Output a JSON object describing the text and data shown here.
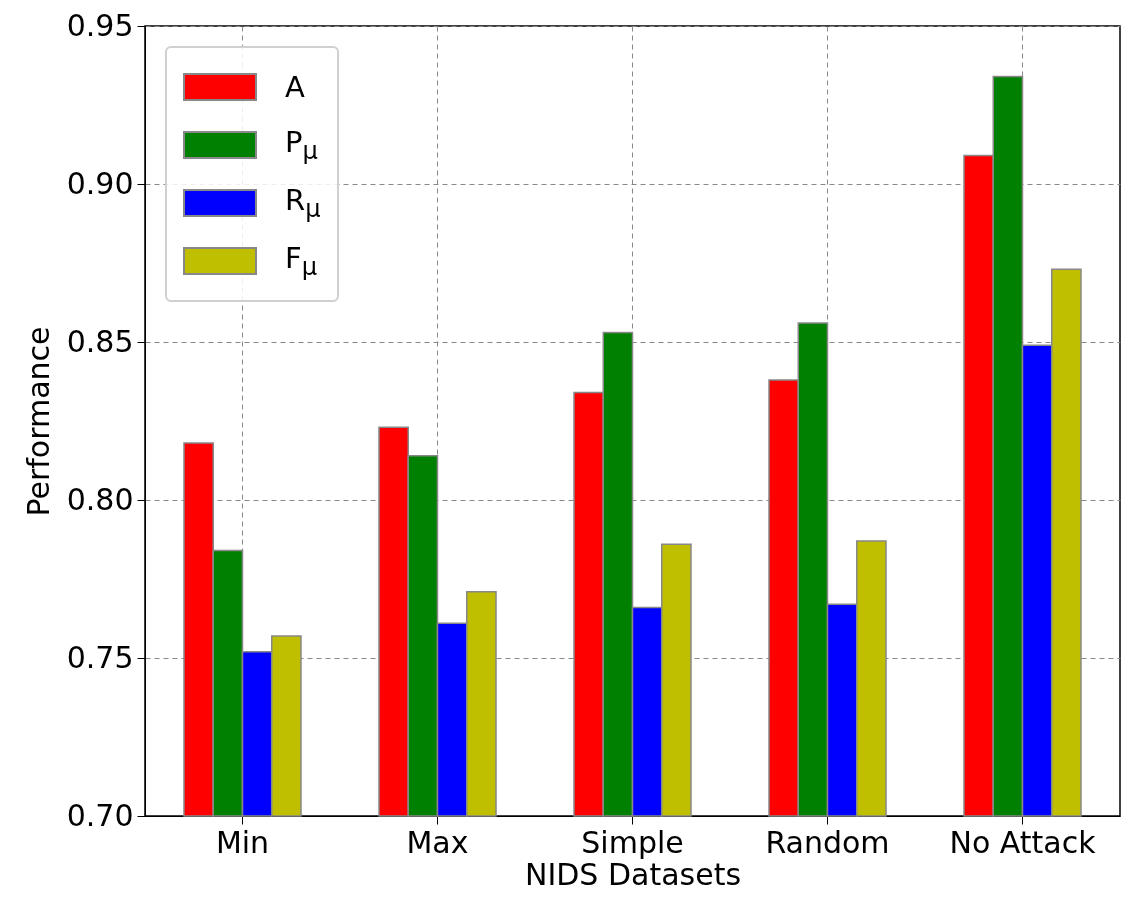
{
  "chart_data": {
    "type": "bar",
    "xlabel": "NIDS Datasets",
    "ylabel": "Performance",
    "categories": [
      "Min",
      "Max",
      "Simple",
      "Random",
      "No Attack"
    ],
    "series": [
      {
        "name": "A",
        "color": "#ff0000",
        "values": [
          0.818,
          0.823,
          0.834,
          0.838,
          0.909
        ]
      },
      {
        "name": "P$_{μ}$",
        "color": "#008000",
        "values": [
          0.784,
          0.814,
          0.853,
          0.856,
          0.934
        ]
      },
      {
        "name": "R$_{μ}$",
        "color": "#0000ff",
        "values": [
          0.752,
          0.761,
          0.766,
          0.767,
          0.849
        ]
      },
      {
        "name": "F$_{μ}$",
        "color": "#bfbf00",
        "values": [
          0.757,
          0.771,
          0.786,
          0.787,
          0.873
        ]
      }
    ],
    "ylim": [
      0.7,
      0.95
    ],
    "yticks": [
      {
        "value": 0.7,
        "label": "0.70"
      },
      {
        "value": 0.75,
        "label": "0.75"
      },
      {
        "value": 0.8,
        "label": "0.80"
      },
      {
        "value": 0.85,
        "label": "0.85"
      },
      {
        "value": 0.9,
        "label": "0.90"
      },
      {
        "value": 0.95,
        "label": "0.95"
      }
    ],
    "grid": true,
    "legend": "top left"
  }
}
